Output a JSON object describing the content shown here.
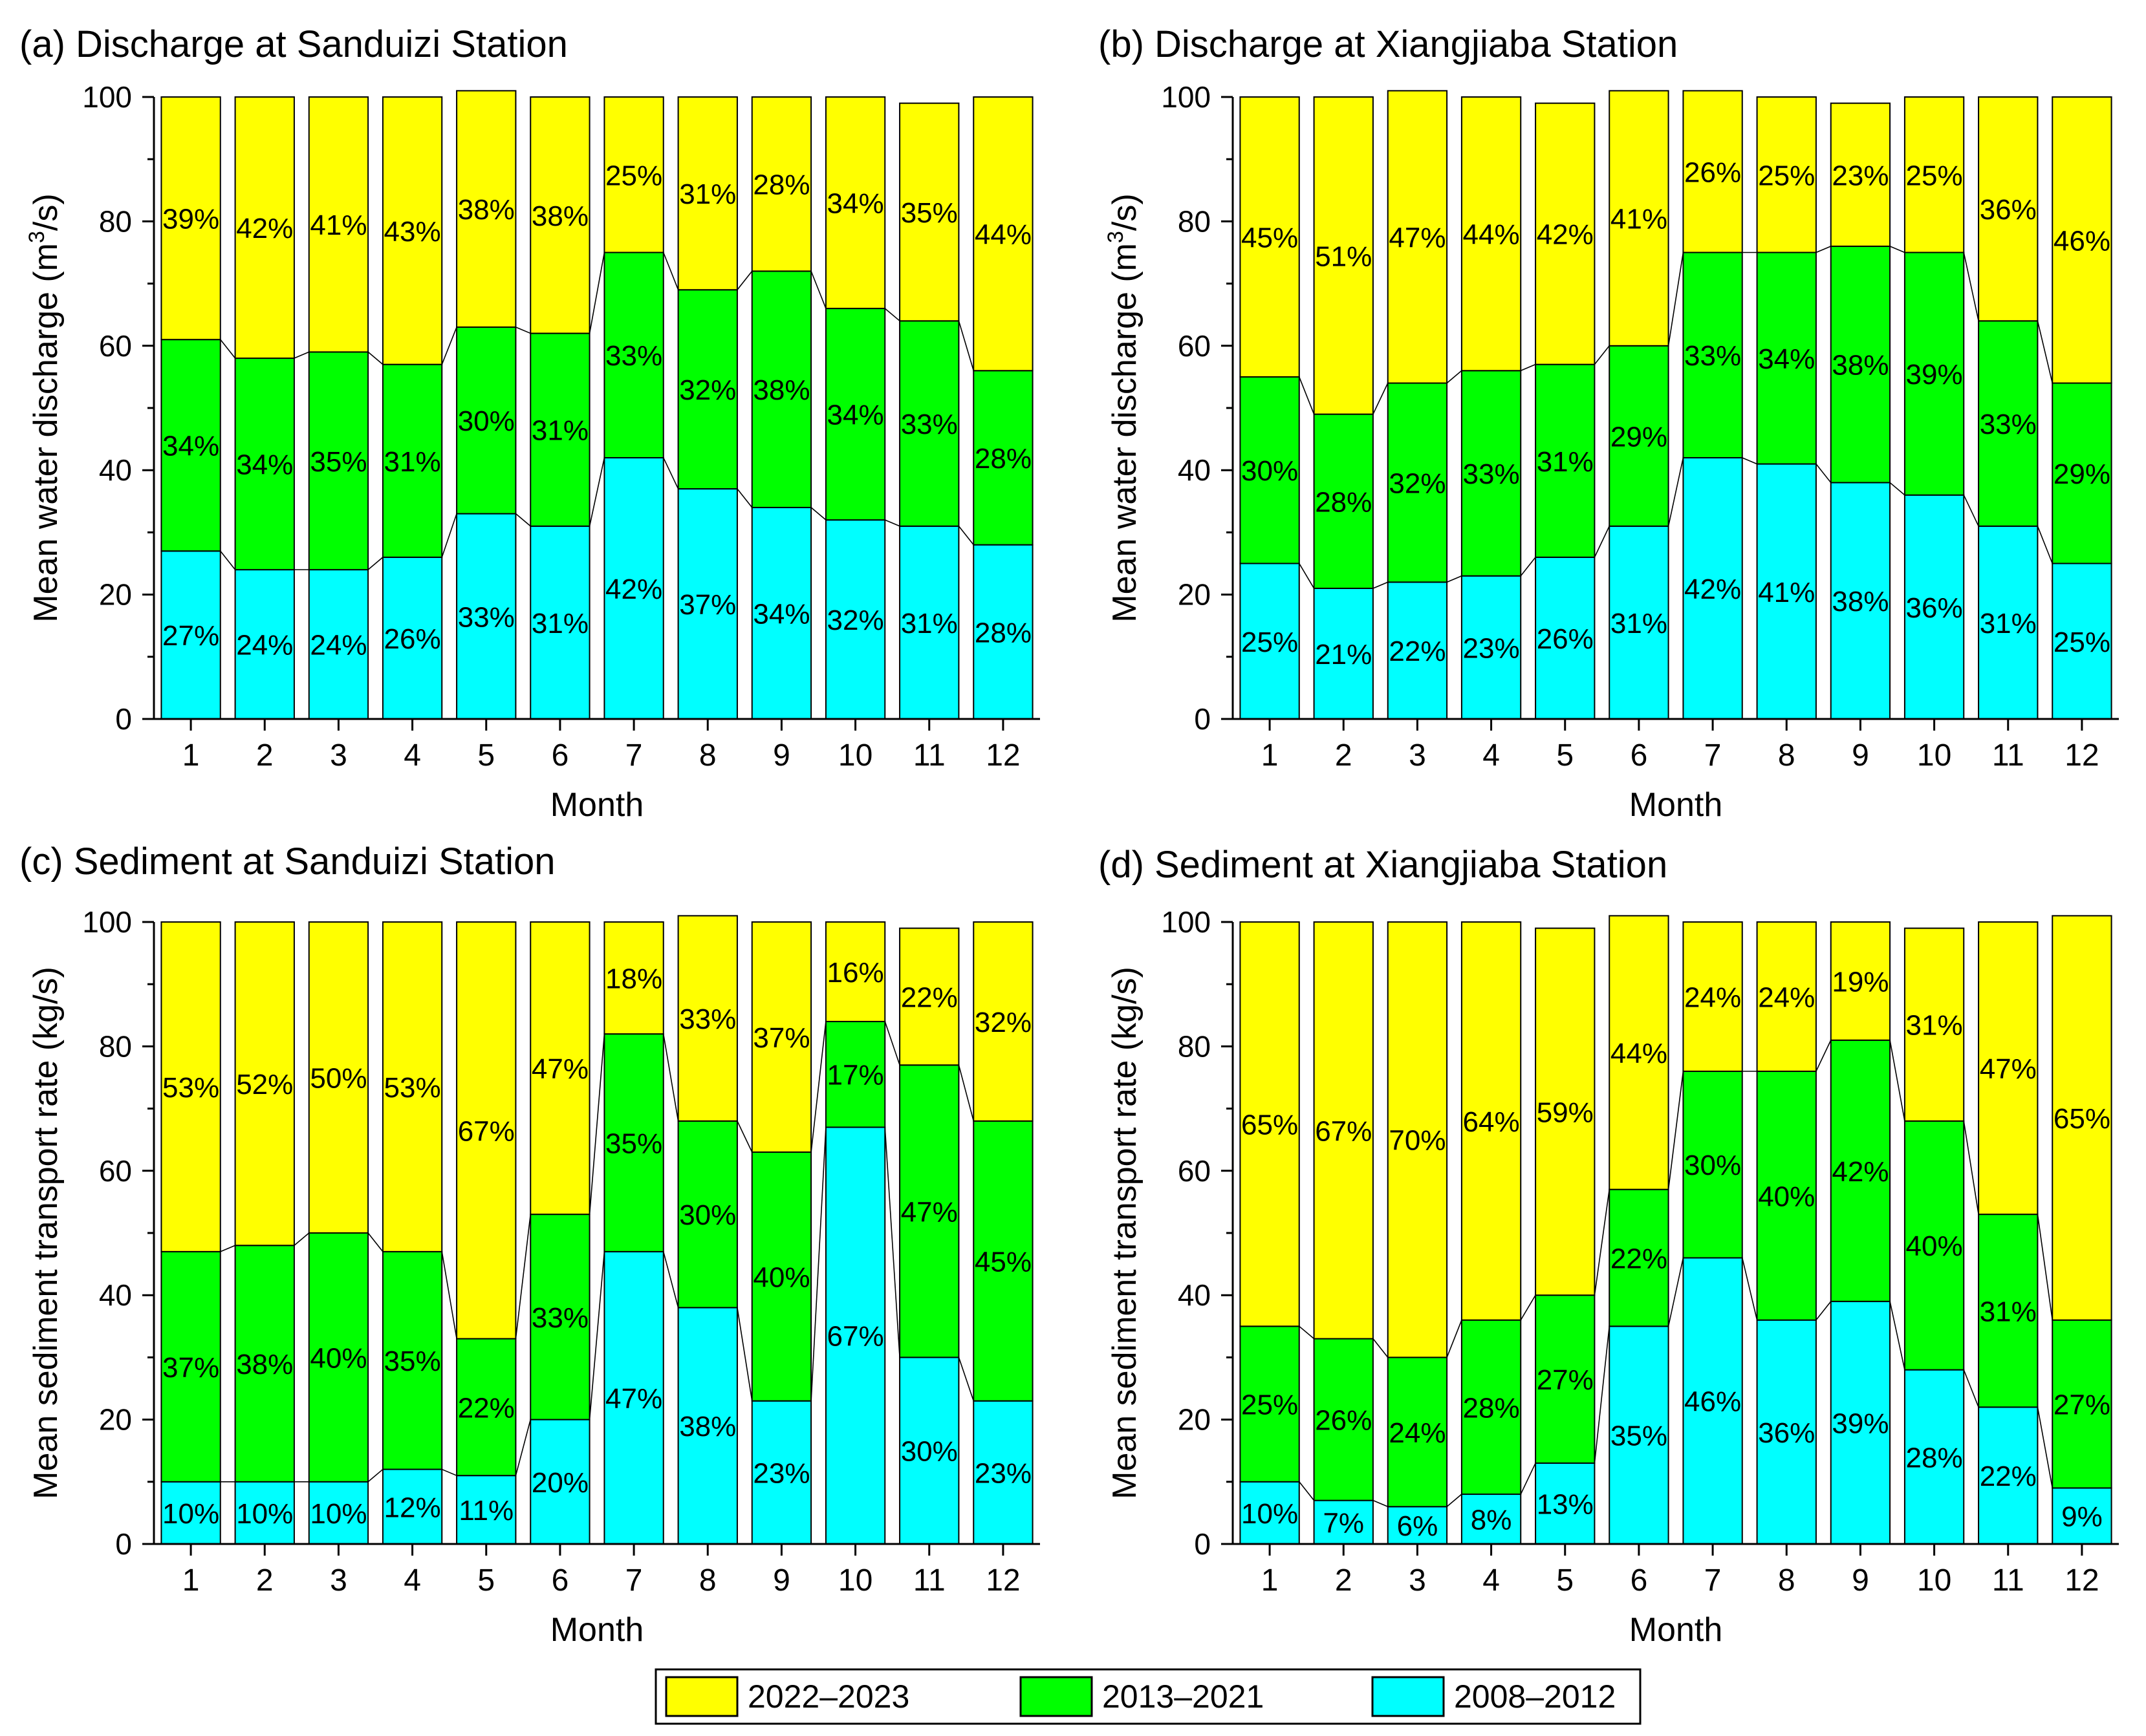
{
  "legend": {
    "entries": [
      {
        "label": "2022–2023",
        "color": "#ffff00"
      },
      {
        "label": "2013–2021",
        "color": "#00ff00"
      },
      {
        "label": "2008–2012",
        "color": "#00ffff"
      }
    ]
  },
  "chart_data": [
    {
      "type": "bar",
      "stacked": true,
      "title": "(a) Discharge at Sanduizi Station",
      "xlabel": "Month",
      "ylabel_main": "Mean water discharge (m",
      "ylabel_sup": "3",
      "ylabel_tail": "/s)",
      "ylim": [
        0,
        100
      ],
      "yticks": [
        "0",
        "20",
        "40",
        "60",
        "80",
        "100"
      ],
      "categories": [
        "1",
        "2",
        "3",
        "4",
        "5",
        "6",
        "7",
        "8",
        "9",
        "10",
        "11",
        "12"
      ],
      "series": [
        {
          "name": "2008–2012",
          "values": [
            27,
            24,
            24,
            26,
            33,
            31,
            42,
            37,
            34,
            32,
            31,
            28
          ],
          "labels": [
            "27%",
            "24%",
            "24%",
            "26%",
            "33%",
            "31%",
            "42%",
            "37%",
            "34%",
            "32%",
            "31%",
            "28%"
          ]
        },
        {
          "name": "2013–2021",
          "values": [
            34,
            34,
            35,
            31,
            30,
            31,
            33,
            32,
            38,
            34,
            33,
            28
          ],
          "labels": [
            "34%",
            "34%",
            "35%",
            "31%",
            "30%",
            "31%",
            "33%",
            "32%",
            "38%",
            "34%",
            "33%",
            "28%"
          ]
        },
        {
          "name": "2022–2023",
          "values": [
            39,
            42,
            41,
            43,
            38,
            38,
            25,
            31,
            28,
            34,
            35,
            44
          ],
          "labels": [
            "39%",
            "42%",
            "41%",
            "43%",
            "38%",
            "38%",
            "25%",
            "31%",
            "28%",
            "34%",
            "35%",
            "44%"
          ]
        }
      ]
    },
    {
      "type": "bar",
      "stacked": true,
      "title": "(b) Discharge at Xiangjiaba Station",
      "xlabel": "Month",
      "ylabel_main": "Mean water discharge (m",
      "ylabel_sup": "3",
      "ylabel_tail": "/s)",
      "ylim": [
        0,
        100
      ],
      "yticks": [
        "0",
        "20",
        "40",
        "60",
        "80",
        "100"
      ],
      "categories": [
        "1",
        "2",
        "3",
        "4",
        "5",
        "6",
        "7",
        "8",
        "9",
        "10",
        "11",
        "12"
      ],
      "series": [
        {
          "name": "2008–2012",
          "values": [
            25,
            21,
            22,
            23,
            26,
            31,
            42,
            41,
            38,
            36,
            31,
            25
          ],
          "labels": [
            "25%",
            "21%",
            "22%",
            "23%",
            "26%",
            "31%",
            "42%",
            "41%",
            "38%",
            "36%",
            "31%",
            "25%"
          ]
        },
        {
          "name": "2013–2021",
          "values": [
            30,
            28,
            32,
            33,
            31,
            29,
            33,
            34,
            38,
            39,
            33,
            29
          ],
          "labels": [
            "30%",
            "28%",
            "32%",
            "33%",
            "31%",
            "29%",
            "33%",
            "34%",
            "38%",
            "39%",
            "33%",
            "29%"
          ]
        },
        {
          "name": "2022–2023",
          "values": [
            45,
            51,
            47,
            44,
            42,
            41,
            26,
            25,
            23,
            25,
            36,
            46
          ],
          "labels": [
            "45%",
            "51%",
            "47%",
            "44%",
            "42%",
            "41%",
            "26%",
            "25%",
            "23%",
            "25%",
            "36%",
            "46%"
          ]
        }
      ]
    },
    {
      "type": "bar",
      "stacked": true,
      "title": "(c) Sediment at Sanduizi Station",
      "xlabel": "Month",
      "ylabel_main": "Mean sediment transport rate (kg/s)",
      "ylabel_sup": "",
      "ylabel_tail": "",
      "ylim": [
        0,
        100
      ],
      "yticks": [
        "0",
        "20",
        "40",
        "60",
        "80",
        "100"
      ],
      "categories": [
        "1",
        "2",
        "3",
        "4",
        "5",
        "6",
        "7",
        "8",
        "9",
        "10",
        "11",
        "12"
      ],
      "series": [
        {
          "name": "2008–2012",
          "values": [
            10,
            10,
            10,
            12,
            11,
            20,
            47,
            38,
            23,
            67,
            30,
            23
          ],
          "labels": [
            "10%",
            "10%",
            "10%",
            "12%",
            "11%",
            "20%",
            "47%",
            "38%",
            "23%",
            "67%",
            "30%",
            "23%"
          ]
        },
        {
          "name": "2013–2021",
          "values": [
            37,
            38,
            40,
            35,
            22,
            33,
            35,
            30,
            40,
            17,
            47,
            45
          ],
          "labels": [
            "37%",
            "38%",
            "40%",
            "35%",
            "22%",
            "33%",
            "35%",
            "30%",
            "40%",
            "17%",
            "47%",
            "45%"
          ]
        },
        {
          "name": "2022–2023",
          "values": [
            53,
            52,
            50,
            53,
            67,
            47,
            18,
            33,
            37,
            16,
            22,
            32
          ],
          "labels": [
            "53%",
            "52%",
            "50%",
            "53%",
            "67%",
            "47%",
            "18%",
            "33%",
            "37%",
            "16%",
            "22%",
            "32%"
          ]
        }
      ]
    },
    {
      "type": "bar",
      "stacked": true,
      "title": "(d) Sediment at Xiangjiaba Station",
      "xlabel": "Month",
      "ylabel_main": "Mean sediment transport rate (kg/s)",
      "ylabel_sup": "",
      "ylabel_tail": "",
      "ylim": [
        0,
        100
      ],
      "yticks": [
        "0",
        "20",
        "40",
        "60",
        "80",
        "100"
      ],
      "categories": [
        "1",
        "2",
        "3",
        "4",
        "5",
        "6",
        "7",
        "8",
        "9",
        "10",
        "11",
        "12"
      ],
      "series": [
        {
          "name": "2008–2012",
          "values": [
            10,
            7,
            6,
            8,
            13,
            35,
            46,
            36,
            39,
            28,
            22,
            9
          ],
          "labels": [
            "10%",
            "7%",
            "6%",
            "8%",
            "13%",
            "35%",
            "46%",
            "36%",
            "39%",
            "28%",
            "22%",
            "9%"
          ]
        },
        {
          "name": "2013–2021",
          "values": [
            25,
            26,
            24,
            28,
            27,
            22,
            30,
            40,
            42,
            40,
            31,
            27
          ],
          "labels": [
            "25%",
            "26%",
            "24%",
            "28%",
            "27%",
            "22%",
            "30%",
            "40%",
            "42%",
            "40%",
            "31%",
            "27%"
          ]
        },
        {
          "name": "2022–2023",
          "values": [
            65,
            67,
            70,
            64,
            59,
            44,
            24,
            24,
            19,
            31,
            47,
            65
          ],
          "labels": [
            "65%",
            "67%",
            "70%",
            "64%",
            "59%",
            "44%",
            "24%",
            "24%",
            "19%",
            "31%",
            "47%",
            "65%"
          ]
        }
      ]
    }
  ]
}
